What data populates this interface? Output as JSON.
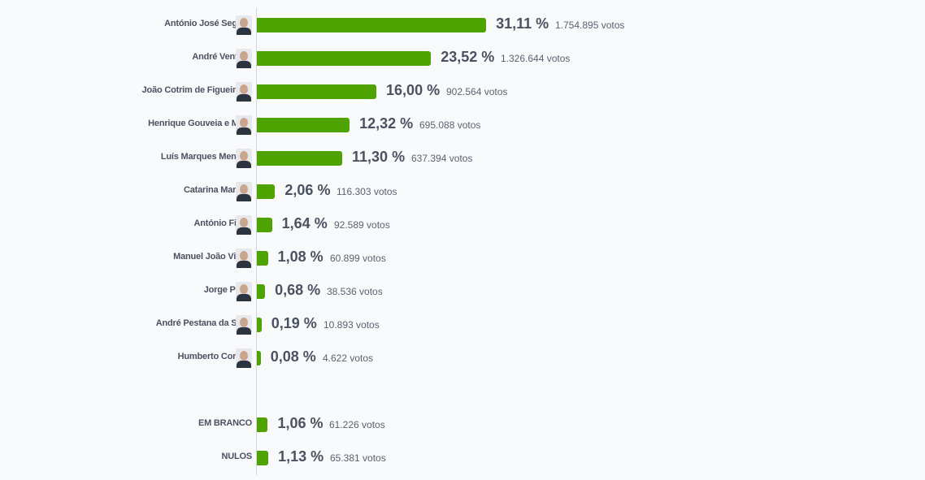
{
  "chart_data": {
    "type": "bar",
    "orientation": "horizontal",
    "bar_color": "#4ea300",
    "votes_suffix": "votos",
    "candidates": [
      {
        "name": "António José Seguro",
        "percent": 31.11,
        "percent_label": "31,11 %",
        "votes": "1.754.895"
      },
      {
        "name": "André Ventura",
        "percent": 23.52,
        "percent_label": "23,52 %",
        "votes": "1.326.644"
      },
      {
        "name": "João Cotrim de Figueiredo",
        "percent": 16.0,
        "percent_label": "16,00 %",
        "votes": "902.564"
      },
      {
        "name": "Henrique Gouveia e Melo",
        "percent": 12.32,
        "percent_label": "12,32 %",
        "votes": "695.088"
      },
      {
        "name": "Luís Marques Mendes",
        "percent": 11.3,
        "percent_label": "11,30 %",
        "votes": "637.394"
      },
      {
        "name": "Catarina Martins",
        "percent": 2.06,
        "percent_label": "2,06 %",
        "votes": "116.303"
      },
      {
        "name": "António Filipe",
        "percent": 1.64,
        "percent_label": "1,64 %",
        "votes": "92.589"
      },
      {
        "name": "Manuel João Vieira",
        "percent": 1.08,
        "percent_label": "1,08 %",
        "votes": "60.899"
      },
      {
        "name": "Jorge Pinto",
        "percent": 0.68,
        "percent_label": "0,68 %",
        "votes": "38.536"
      },
      {
        "name": "André Pestana da Silva",
        "percent": 0.19,
        "percent_label": "0,19 %",
        "votes": "10.893"
      },
      {
        "name": "Humberto Correia",
        "percent": 0.08,
        "percent_label": "0,08 %",
        "votes": "4.622"
      }
    ],
    "other": [
      {
        "name": "EM BRANCO",
        "percent": 1.06,
        "percent_label": "1,06 %",
        "votes": "61.226"
      },
      {
        "name": "NULOS",
        "percent": 1.13,
        "percent_label": "1,13 %",
        "votes": "65.381"
      }
    ]
  }
}
